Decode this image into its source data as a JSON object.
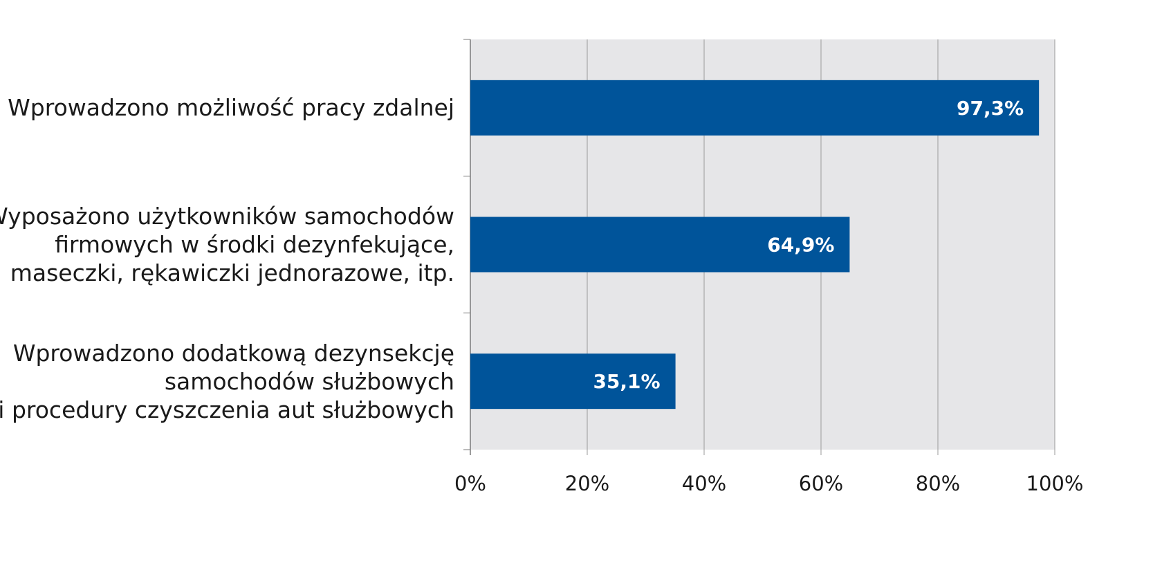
{
  "chart_data": {
    "type": "bar",
    "orientation": "horizontal",
    "categories": [
      [
        "Wprowadzono możliwość pracy zdalnej"
      ],
      [
        "Wyposażono użytkowników samochodów",
        "firmowych w środki dezynfekujące,",
        "maseczki, rękawiczki jednorazowe, itp."
      ],
      [
        "Wprowadzono dodatkową dezynsekcję",
        "samochodów służbowych",
        "i procedury czyszczenia aut służbowych"
      ]
    ],
    "values": [
      97.3,
      64.9,
      35.1
    ],
    "value_labels": [
      "97,3%",
      "64,9%",
      "35,1%"
    ],
    "x_ticks": [
      0,
      20,
      40,
      60,
      80,
      100
    ],
    "x_tick_labels": [
      "0%",
      "20%",
      "40%",
      "60%",
      "80%",
      "100%"
    ],
    "xlim": [
      0,
      100
    ],
    "title": "",
    "xlabel": "",
    "ylabel": "",
    "grid": "vertical",
    "colors": {
      "bar": "#00549a",
      "plot_background": "#e6e6e8",
      "gridline": "#9a9a9a",
      "axis": "#7a7a7a"
    }
  }
}
